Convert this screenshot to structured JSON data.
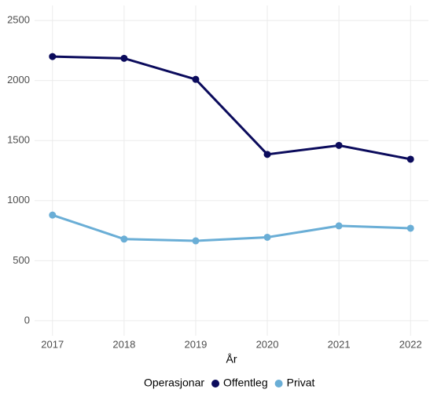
{
  "chart_data": {
    "type": "line",
    "x_label": "År",
    "x": [
      2017,
      2018,
      2019,
      2020,
      2021,
      2022
    ],
    "series": [
      {
        "name": "Offentleg",
        "color": "#0b0b5c",
        "values": [
          2200,
          2185,
          2010,
          1385,
          1460,
          1345
        ]
      },
      {
        "name": "Privat",
        "color": "#6aaed6",
        "values": [
          880,
          680,
          665,
          695,
          790,
          770
        ]
      }
    ],
    "legend_title": "Operasjonar",
    "legend_position": "bottom",
    "xlim": [
      2016.75,
      2022.25
    ],
    "xticks": [
      2017,
      2018,
      2019,
      2020,
      2021,
      2022
    ],
    "ylim": [
      -125,
      2625
    ],
    "yticks": [
      0,
      500,
      1000,
      1500,
      2000,
      2500
    ],
    "grid": true
  }
}
